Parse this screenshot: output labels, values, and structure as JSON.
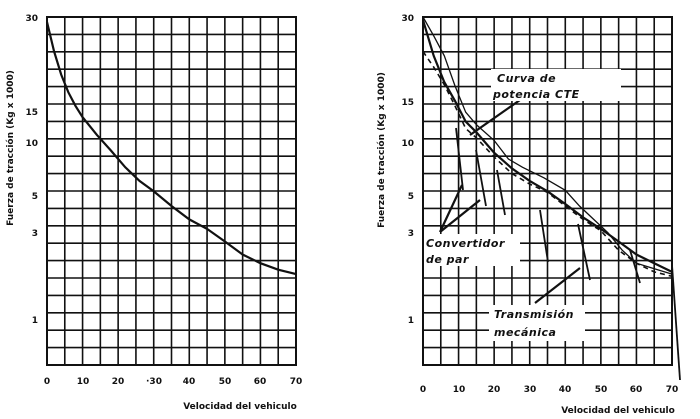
{
  "chart_data": [
    {
      "type": "line",
      "title": "",
      "xlabel": "Velocidad del vehiculo",
      "ylabel": "Fuerza de tracción (Kg x 1000)",
      "xlim": [
        0,
        70
      ],
      "ylim": [
        0,
        30
      ],
      "x_ticks": [
        "0",
        "10",
        "20",
        "·30",
        "40",
        "50",
        "60",
        "70"
      ],
      "y_ticks": [
        "30",
        "15",
        "10",
        "5",
        "3",
        "1"
      ],
      "grid": true,
      "series": [
        {
          "x": [
            0,
            2,
            4,
            6,
            8,
            10,
            14,
            18,
            22,
            26,
            30,
            35,
            40,
            45,
            50,
            55,
            60,
            65,
            70
          ],
          "y": [
            29.2,
            24.5,
            20.8,
            18.0,
            15.8,
            14.0,
            11.2,
            9.2,
            7.6,
            6.3,
            5.3,
            4.4,
            3.7,
            3.2,
            2.8,
            2.5,
            2.3,
            2.15,
            2.05
          ]
        }
      ]
    },
    {
      "type": "line",
      "title": "",
      "xlabel": "Velocidad del vehiculo",
      "ylabel": "Fuerza de tracción (Kg x 1000)",
      "xlim": [
        0,
        70
      ],
      "ylim": [
        0,
        30
      ],
      "x_ticks": [
        "0",
        "10",
        "20",
        "30",
        "40",
        "50",
        "60",
        "70"
      ],
      "y_ticks": [
        "30",
        "15",
        "10",
        "5",
        "3",
        "1"
      ],
      "grid": true,
      "annotations": [
        "Curva de potencia CTE",
        "Convertidor de par",
        "Transmisión mecánica"
      ],
      "series": [
        {
          "x": [
            0,
            3,
            6,
            9,
            12,
            15,
            20,
            25,
            30,
            35,
            40,
            45,
            50,
            55,
            60,
            65,
            70
          ],
          "y": [
            29.5,
            23.8,
            19.6,
            16.6,
            13.3,
            11.6,
            9.0,
            7.5,
            6.3,
            5.3,
            4.5,
            3.8,
            3.2,
            2.8,
            2.5,
            2.3,
            2.1
          ]
        },
        {
          "x": [
            0,
            3,
            6,
            9,
            12,
            15,
            20,
            25,
            30,
            35,
            40,
            45,
            50,
            55,
            60,
            65,
            70
          ],
          "y": [
            24.5,
            22.0,
            19.2,
            15.8,
            12.2,
            10.7,
            8.6,
            7.0,
            6.0,
            5.2,
            4.4,
            3.7,
            3.1,
            2.6,
            2.3,
            2.1,
            2.0
          ]
        },
        {
          "x": [
            0,
            3,
            6,
            9,
            12,
            15,
            20,
            24,
            28,
            34,
            40,
            44,
            48,
            52,
            56,
            60,
            64,
            70
          ],
          "y": [
            30.0,
            27.0,
            23.8,
            19.0,
            14.8,
            12.8,
            10.3,
            8.4,
            7.6,
            6.6,
            5.4,
            4.4,
            3.7,
            3.0,
            2.6,
            2.3,
            2.2,
            2.05
          ]
        }
      ]
    }
  ]
}
